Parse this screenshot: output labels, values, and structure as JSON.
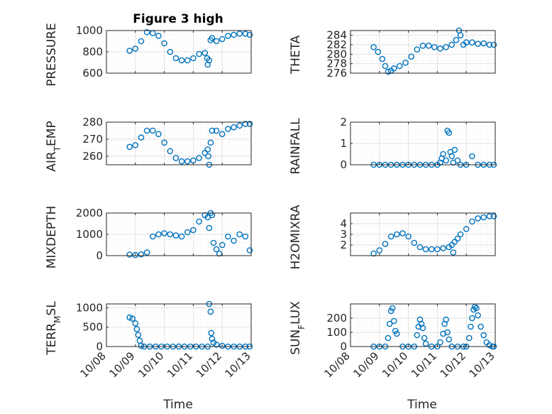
{
  "figure": {
    "title": "Figure 3 high",
    "xlabel": "Time"
  },
  "colors": {
    "marker": "#0072BD",
    "axes": "#262626",
    "grid": "#dfdfdf",
    "background": "#ffffff"
  },
  "chart_data": [
    {
      "type": "scatter",
      "marker": "circle-open",
      "ylabel": "PRESSURE",
      "ylim": [
        600,
        1000
      ],
      "yticks": [
        600,
        800,
        1000
      ],
      "ytick_labels": [
        "600",
        "800",
        "1000"
      ],
      "x": [
        8.8,
        9.0,
        9.2,
        9.4,
        9.6,
        9.8,
        10.0,
        10.2,
        10.4,
        10.6,
        10.8,
        11.0,
        11.2,
        11.4,
        11.48,
        11.5,
        11.55,
        11.6,
        11.65,
        11.8,
        12.0,
        12.2,
        12.4,
        12.6,
        12.8,
        12.95
      ],
      "y": [
        810,
        830,
        900,
        985,
        975,
        950,
        880,
        800,
        740,
        720,
        720,
        740,
        780,
        790,
        740,
        680,
        720,
        910,
        930,
        900,
        920,
        950,
        960,
        970,
        970,
        960
      ]
    },
    {
      "type": "scatter",
      "marker": "circle-open",
      "ylabel": "THETA",
      "ylim": [
        276,
        285
      ],
      "yticks": [
        276,
        278,
        280,
        282,
        284
      ],
      "ytick_labels": [
        "276",
        "278",
        "280",
        "282",
        "284"
      ],
      "x": [
        8.8,
        8.95,
        9.1,
        9.2,
        9.3,
        9.4,
        9.5,
        9.7,
        9.9,
        10.1,
        10.3,
        10.5,
        10.7,
        10.9,
        11.1,
        11.3,
        11.5,
        11.65,
        11.75,
        11.8,
        11.9,
        12.0,
        12.2,
        12.4,
        12.6,
        12.8,
        12.95
      ],
      "y": [
        281.5,
        280.5,
        279,
        277.5,
        276.3,
        276.5,
        277,
        277.5,
        278.2,
        279.5,
        281,
        281.8,
        281.8,
        281.5,
        281.2,
        281.5,
        282,
        283,
        285,
        284,
        282,
        282.5,
        282.5,
        282.2,
        282.3,
        282,
        282
      ]
    },
    {
      "type": "scatter",
      "marker": "circle-open",
      "ylabel": "AIR_TEMP",
      "ylim": [
        255,
        280
      ],
      "yticks": [
        260,
        270,
        280
      ],
      "ytick_labels": [
        "260",
        "270",
        "280"
      ],
      "x": [
        8.8,
        9.0,
        9.2,
        9.4,
        9.6,
        9.8,
        10.0,
        10.2,
        10.4,
        10.6,
        10.8,
        11.0,
        11.2,
        11.4,
        11.5,
        11.52,
        11.55,
        11.6,
        11.65,
        11.8,
        12.0,
        12.2,
        12.4,
        12.6,
        12.8,
        12.95
      ],
      "y": [
        265.5,
        266.5,
        271,
        275,
        275,
        273,
        268,
        263,
        259,
        257,
        257,
        257.5,
        259,
        262,
        264,
        260,
        255,
        268,
        275,
        275,
        273,
        276,
        277,
        278,
        279,
        279
      ]
    },
    {
      "type": "scatter",
      "marker": "circle-open",
      "ylabel": "RAINFALL",
      "ylim": [
        0,
        2
      ],
      "yticks": [
        0,
        1,
        2
      ],
      "ytick_labels": [
        "0",
        "1",
        "2"
      ],
      "x": [
        8.8,
        9.0,
        9.2,
        9.4,
        9.6,
        9.8,
        10.0,
        10.2,
        10.4,
        10.6,
        10.8,
        11.0,
        11.1,
        11.15,
        11.2,
        11.3,
        11.35,
        11.4,
        11.45,
        11.5,
        11.55,
        11.6,
        11.7,
        11.8,
        12.0,
        12.2,
        12.4,
        12.6,
        12.8,
        12.95
      ],
      "y": [
        0,
        0,
        0,
        0,
        0,
        0,
        0,
        0,
        0,
        0,
        0,
        0,
        0.1,
        0.3,
        0.5,
        0.2,
        1.6,
        1.5,
        0.6,
        0.4,
        0.1,
        0.7,
        0.2,
        0,
        0,
        0.4,
        0,
        0,
        0,
        0
      ]
    },
    {
      "type": "scatter",
      "marker": "circle-open",
      "ylabel": "MIXDEPTH",
      "ylim": [
        0,
        2000
      ],
      "yticks": [
        0,
        1000,
        2000
      ],
      "ytick_labels": [
        "0",
        "1000",
        "2000"
      ],
      "x": [
        8.8,
        9.0,
        9.2,
        9.4,
        9.6,
        9.8,
        10.0,
        10.2,
        10.4,
        10.6,
        10.8,
        11.0,
        11.2,
        11.4,
        11.5,
        11.55,
        11.6,
        11.65,
        11.7,
        11.8,
        11.9,
        12.0,
        12.2,
        12.4,
        12.6,
        12.8,
        12.95
      ],
      "y": [
        50,
        30,
        60,
        150,
        900,
        1000,
        1050,
        1000,
        950,
        900,
        1100,
        1200,
        1600,
        1900,
        1800,
        1300,
        2000,
        1900,
        600,
        300,
        100,
        500,
        900,
        700,
        1000,
        900,
        250
      ]
    },
    {
      "type": "scatter",
      "marker": "circle-open",
      "ylabel": "H2OMIXRA",
      "ylim": [
        1,
        5
      ],
      "yticks": [
        2,
        3,
        4
      ],
      "ytick_labels": [
        "2",
        "3",
        "4"
      ],
      "x": [
        8.8,
        9.0,
        9.2,
        9.4,
        9.6,
        9.8,
        10.0,
        10.2,
        10.4,
        10.6,
        10.8,
        11.0,
        11.2,
        11.4,
        11.5,
        11.55,
        11.6,
        11.7,
        11.8,
        12.0,
        12.2,
        12.4,
        12.6,
        12.8,
        12.95
      ],
      "y": [
        1.2,
        1.5,
        2.1,
        2.8,
        3.0,
        3.1,
        2.8,
        2.2,
        1.8,
        1.6,
        1.6,
        1.6,
        1.7,
        1.8,
        2.0,
        1.3,
        2.3,
        2.6,
        3.0,
        3.5,
        4.2,
        4.5,
        4.6,
        4.7,
        4.7
      ]
    },
    {
      "type": "scatter",
      "marker": "circle-open",
      "ylabel": "TERR_MSL",
      "ylim": [
        0,
        1100
      ],
      "yticks": [
        0,
        500,
        1000
      ],
      "ytick_labels": [
        "0",
        "500",
        "1000"
      ],
      "x": [
        8.8,
        8.9,
        9.0,
        9.05,
        9.1,
        9.15,
        9.2,
        9.3,
        9.5,
        9.7,
        9.9,
        10.1,
        10.3,
        10.5,
        10.7,
        10.9,
        11.1,
        11.3,
        11.5,
        11.55,
        11.6,
        11.62,
        11.65,
        11.7,
        11.8,
        12.0,
        12.2,
        12.4,
        12.6,
        12.8,
        12.95
      ],
      "y": [
        750,
        720,
        600,
        450,
        300,
        150,
        20,
        0,
        0,
        0,
        0,
        0,
        0,
        0,
        0,
        0,
        0,
        0,
        0,
        1100,
        900,
        350,
        200,
        100,
        50,
        20,
        0,
        0,
        0,
        0,
        0
      ]
    },
    {
      "type": "scatter",
      "marker": "circle-open",
      "ylabel": "SUN_FLUX",
      "ylim": [
        0,
        300
      ],
      "yticks": [
        0,
        100,
        200
      ],
      "ytick_labels": [
        "0",
        "100",
        "200"
      ],
      "x": [
        8.8,
        9.0,
        9.2,
        9.3,
        9.35,
        9.4,
        9.45,
        9.5,
        9.55,
        9.6,
        9.8,
        10.0,
        10.2,
        10.3,
        10.35,
        10.4,
        10.45,
        10.5,
        10.55,
        10.6,
        10.8,
        11.0,
        11.1,
        11.2,
        11.25,
        11.3,
        11.35,
        11.4,
        11.5,
        11.7,
        11.9,
        12.0,
        12.1,
        12.15,
        12.2,
        12.25,
        12.3,
        12.35,
        12.4,
        12.5,
        12.6,
        12.7,
        12.8,
        12.9,
        12.95
      ],
      "y": [
        0,
        0,
        0,
        60,
        160,
        250,
        270,
        180,
        110,
        90,
        0,
        0,
        0,
        80,
        140,
        190,
        160,
        130,
        60,
        20,
        0,
        0,
        30,
        90,
        160,
        190,
        100,
        50,
        0,
        0,
        0,
        0,
        60,
        140,
        200,
        260,
        280,
        270,
        220,
        140,
        80,
        30,
        10,
        0,
        0
      ]
    }
  ]
}
